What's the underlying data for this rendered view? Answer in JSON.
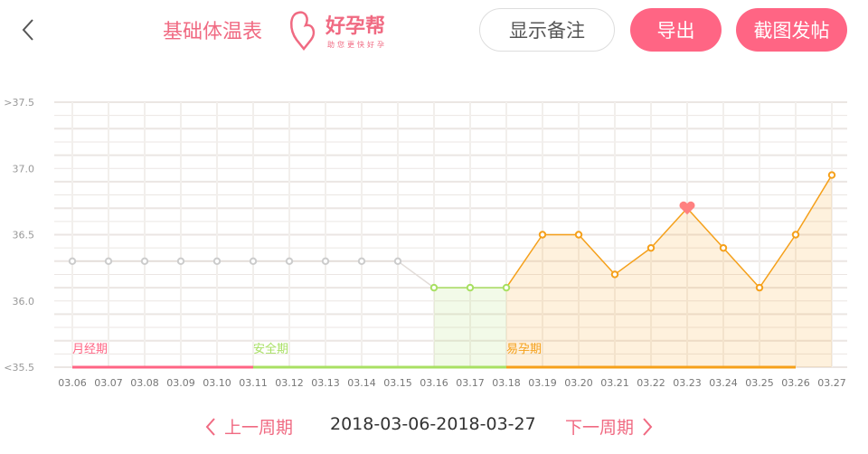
{
  "header": {
    "title": "基础体温表",
    "logo_text": "好孕帮",
    "logo_slogan": "助您更快好孕",
    "note_button": "显示备注",
    "export_button": "导出",
    "post_button": "截图发帖",
    "back_icon": "chevron-left-icon"
  },
  "chart_data": {
    "type": "line",
    "x": [
      "03.06",
      "03.07",
      "03.08",
      "03.09",
      "03.10",
      "03.11",
      "03.12",
      "03.13",
      "03.14",
      "03.15",
      "03.16",
      "03.17",
      "03.18",
      "03.19",
      "03.20",
      "03.21",
      "03.22",
      "03.23",
      "03.24",
      "03.25",
      "03.26",
      "03.27"
    ],
    "values": [
      36.3,
      36.3,
      36.3,
      36.3,
      36.3,
      36.3,
      36.3,
      36.3,
      36.3,
      36.3,
      36.1,
      36.1,
      36.1,
      36.5,
      36.5,
      36.2,
      36.4,
      36.7,
      36.4,
      36.1,
      36.5,
      36.95
    ],
    "ylim": [
      35.5,
      37.5
    ],
    "y_ticks": [
      ">37.5",
      "37.0",
      "36.5",
      "36.0",
      "<35.5"
    ],
    "grid": true,
    "marker_heart_at": "03.23",
    "phases": [
      {
        "label": "月经期",
        "start": "03.06",
        "end": "03.11",
        "color": "#ff6584"
      },
      {
        "label": "安全期",
        "start": "03.11",
        "end": "03.18",
        "color": "#a8e063"
      },
      {
        "label": "易孕期",
        "start": "03.18",
        "end": "03.26",
        "color": "#f5a01a"
      }
    ],
    "colors": {
      "unknown": "#cccccc",
      "safe": "#a8e063",
      "fertile": "#f5a01a",
      "heart": "#ff8080"
    }
  },
  "footer": {
    "prev_label": "上一周期",
    "range": "2018-03-06-2018-03-27",
    "next_label": "下一周期"
  }
}
